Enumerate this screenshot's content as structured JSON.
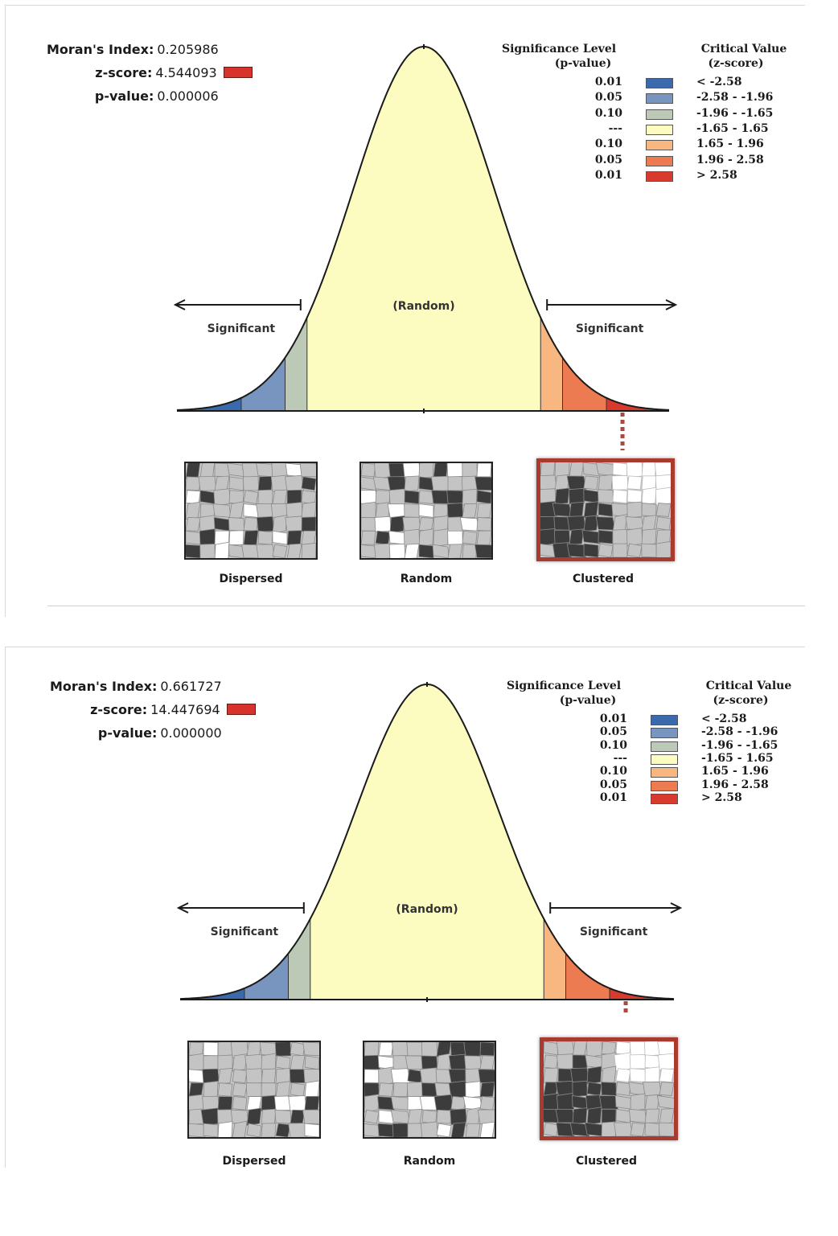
{
  "panels": [
    {
      "stats": {
        "morans_label": "Moran's Index:",
        "morans_value": "0.205986",
        "z_label": "z-score:",
        "z_value": "4.544093",
        "p_label": "p-value:",
        "p_value": "0.000006"
      },
      "z_indicator_color": "#d7322b"
    },
    {
      "stats": {
        "morans_label": "Moran's Index:",
        "morans_value": "0.661727",
        "z_label": "z-score:",
        "z_value": "14.447694",
        "p_label": "p-value:",
        "p_value": "0.000000"
      },
      "z_indicator_color": "#d7322b"
    }
  ],
  "legend": {
    "sig_header_1": "Significance Level",
    "sig_header_2": "(p-value)",
    "crit_header_1": "Critical Value",
    "crit_header_2": "(z-score)",
    "rows": [
      {
        "p": "0.01",
        "z": "< -2.58",
        "color": "#3a6aac"
      },
      {
        "p": "0.05",
        "z": "-2.58 - -1.96",
        "color": "#7895c0"
      },
      {
        "p": "0.10",
        "z": "-1.96 - -1.65",
        "color": "#bcc9b6"
      },
      {
        "p": "---",
        "z": "-1.65 - 1.65",
        "color": "#fdfcc0"
      },
      {
        "p": "0.10",
        "z": "1.65 - 1.96",
        "color": "#f8b681"
      },
      {
        "p": "0.05",
        "z": "1.96 - 2.58",
        "color": "#ed7b52"
      },
      {
        "p": "0.01",
        "z": "> 2.58",
        "color": "#d83a2d"
      }
    ]
  },
  "curve": {
    "random_label": "(Random)",
    "left_label": "Significant",
    "right_label": "Significant"
  },
  "maps": {
    "dispersed_label": "Dispersed",
    "random_label": "Random",
    "clustered_label": "Clustered",
    "selected": "clustered"
  }
}
